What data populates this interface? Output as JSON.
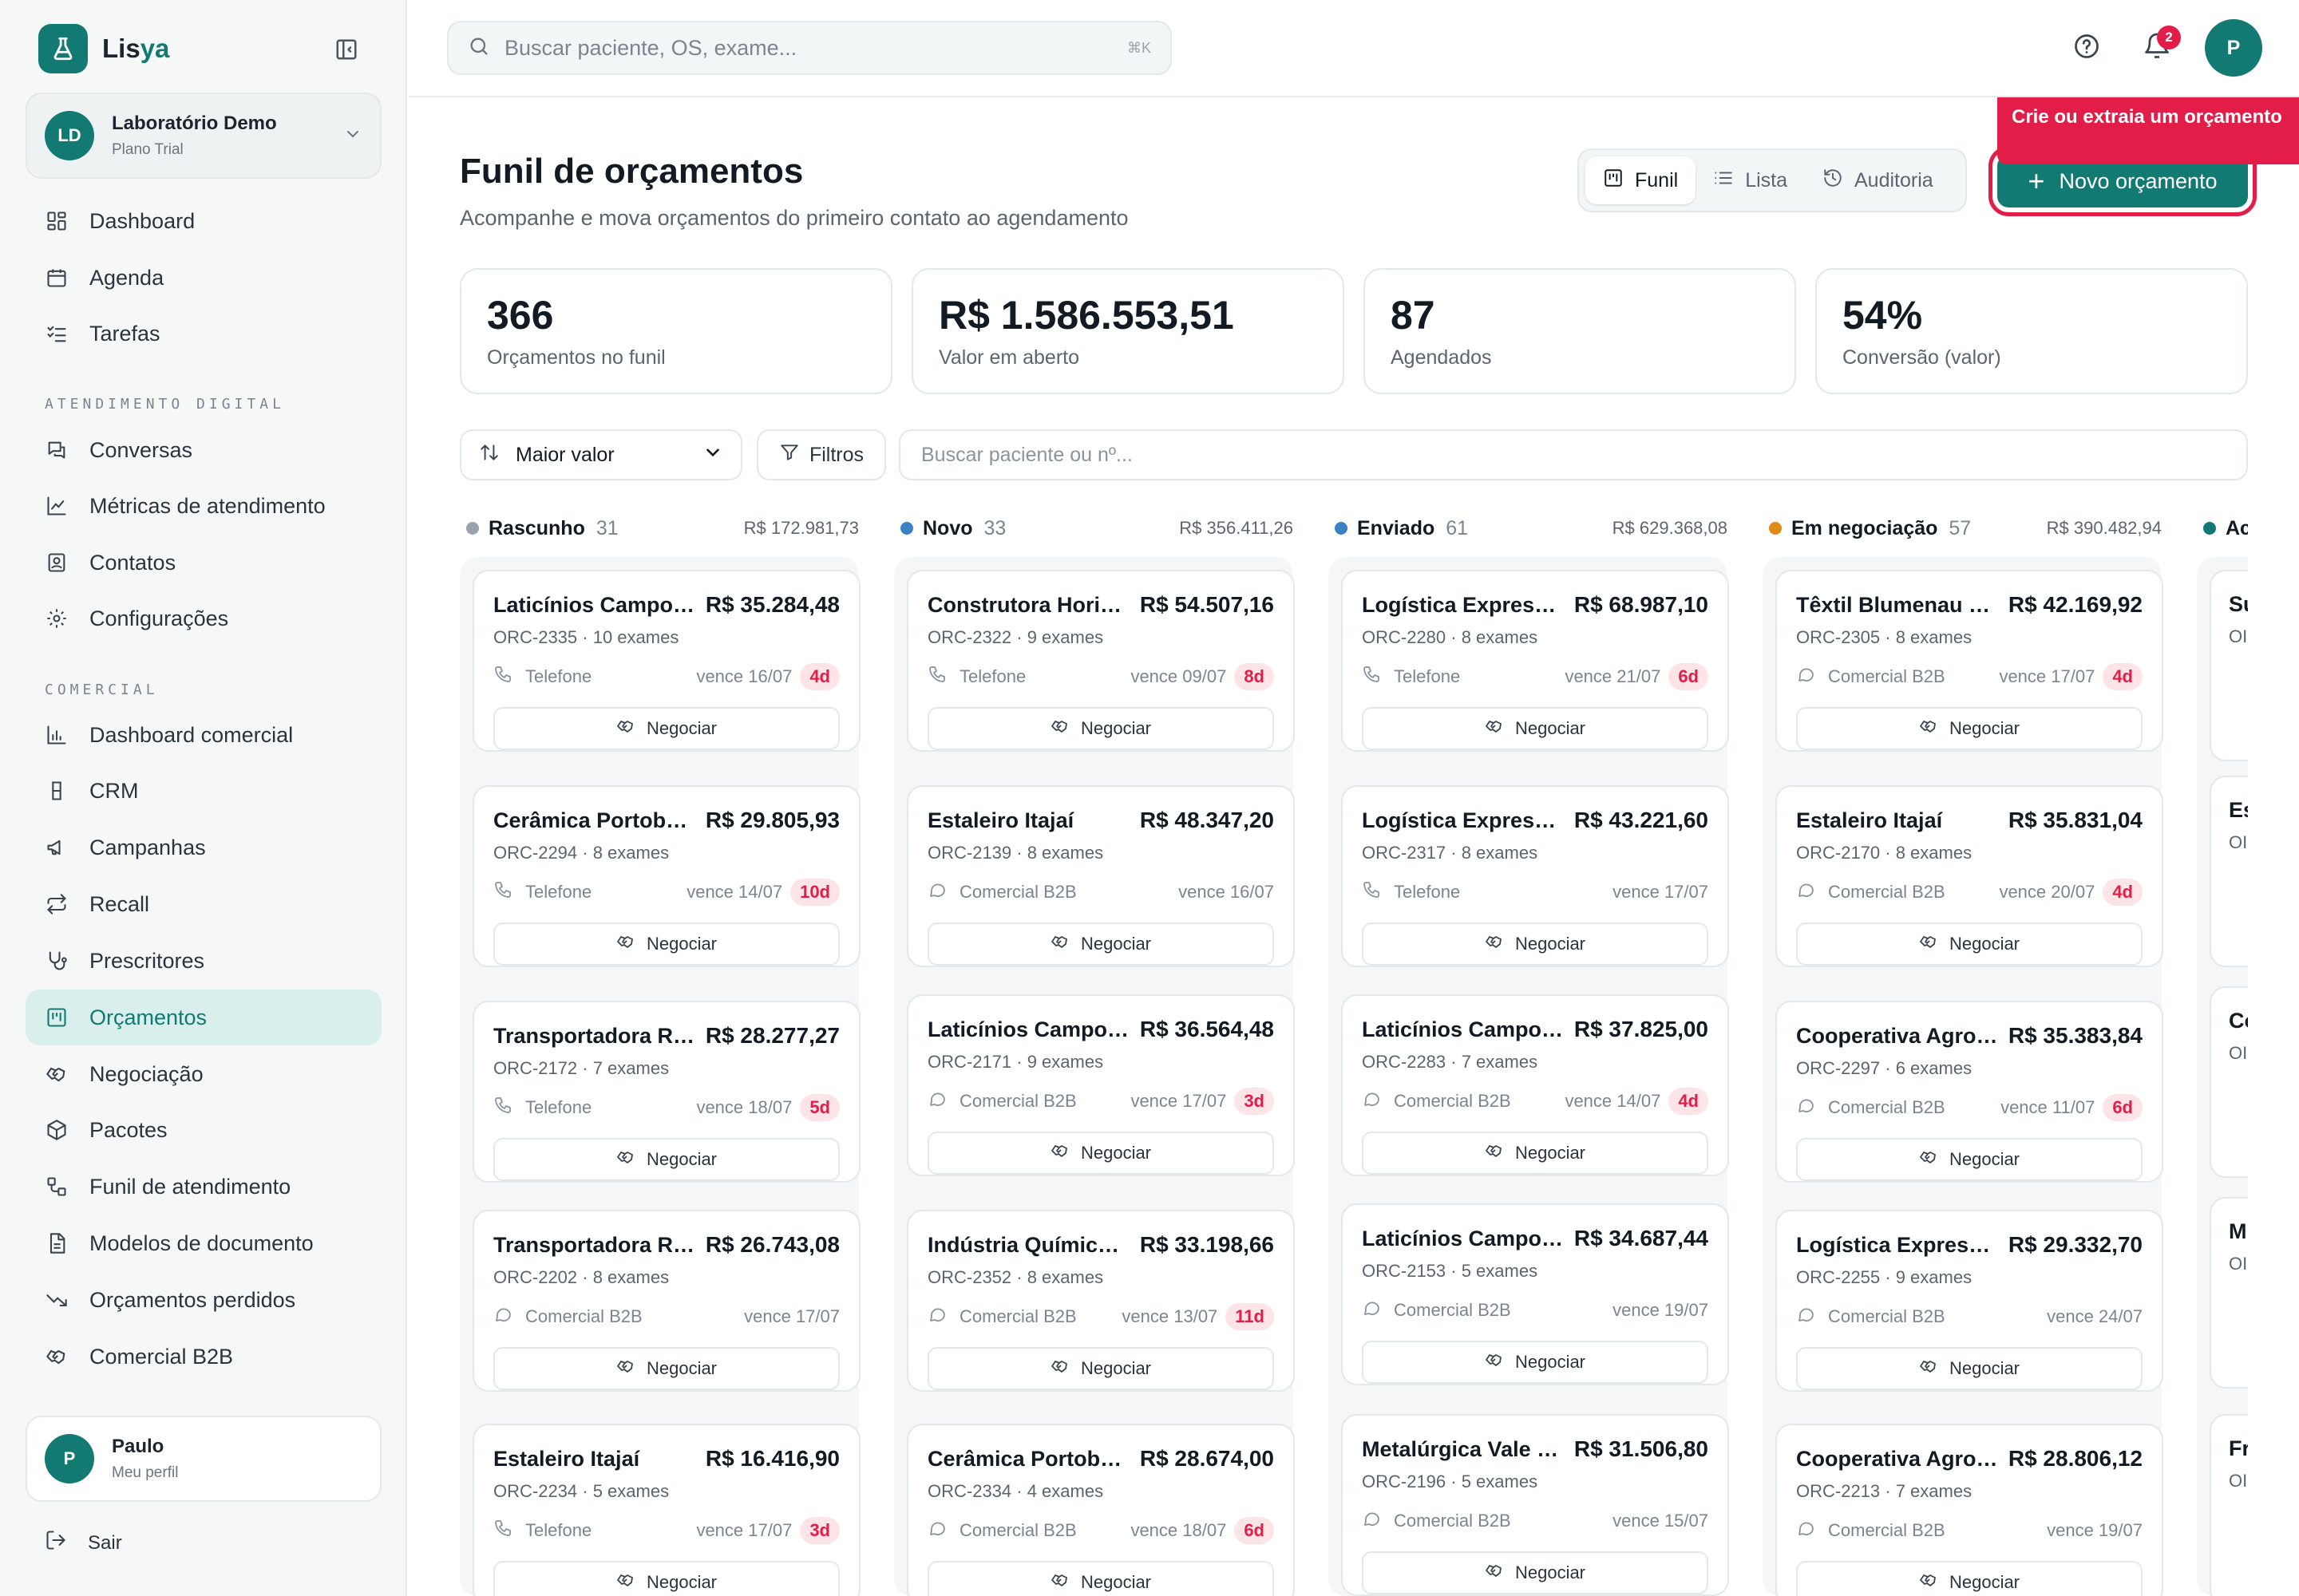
{
  "app": {
    "brand_prefix": "Lis",
    "brand_suffix": "ya"
  },
  "org": {
    "initials": "LD",
    "name": "Laboratório Demo",
    "plan": "Plano Trial"
  },
  "sidebar": {
    "items": [
      {
        "label": "Dashboard",
        "icon": "layout-grid-icon"
      },
      {
        "label": "Agenda",
        "icon": "calendar-icon"
      },
      {
        "label": "Tarefas",
        "icon": "checklist-icon"
      }
    ],
    "section_digital": "ATENDIMENTO DIGITAL",
    "digital_items": [
      {
        "label": "Conversas",
        "icon": "chat-icon"
      },
      {
        "label": "Métricas de atendimento",
        "icon": "line-chart-icon"
      },
      {
        "label": "Contatos",
        "icon": "contact-icon"
      },
      {
        "label": "Configurações",
        "icon": "gear-icon"
      }
    ],
    "section_comercial": "COMERCIAL",
    "comercial_items": [
      {
        "label": "Dashboard comercial",
        "icon": "bar-chart-icon"
      },
      {
        "label": "CRM",
        "icon": "flask-icon"
      },
      {
        "label": "Campanhas",
        "icon": "megaphone-icon"
      },
      {
        "label": "Recall",
        "icon": "repeat-icon"
      },
      {
        "label": "Prescritores",
        "icon": "stethoscope-icon"
      },
      {
        "label": "Orçamentos",
        "icon": "kanban-icon",
        "active": true
      },
      {
        "label": "Negociação",
        "icon": "handshake-icon"
      },
      {
        "label": "Pacotes",
        "icon": "package-icon"
      },
      {
        "label": "Funil de atendimento",
        "icon": "workflow-icon"
      },
      {
        "label": "Modelos de documento",
        "icon": "document-icon"
      },
      {
        "label": "Orçamentos perdidos",
        "icon": "trending-down-icon"
      },
      {
        "label": "Comercial B2B",
        "icon": "handshake-icon"
      }
    ]
  },
  "profile": {
    "initial": "P",
    "name": "Paulo",
    "sub": "Meu perfil",
    "logout": "Sair"
  },
  "topbar": {
    "search_placeholder": "Buscar paciente, OS, exame...",
    "search_shortcut": "⌘K",
    "notifications": "2",
    "avatar_initial": "P"
  },
  "page": {
    "title": "Funil de orçamentos",
    "subtitle": "Acompanhe e mova orçamentos do primeiro contato ao agendamento"
  },
  "views": {
    "funil": "Funil",
    "lista": "Lista",
    "auditoria": "Auditoria"
  },
  "new_button": "Novo orçamento",
  "tooltip": "Crie ou extraia um orçamento",
  "kpis": [
    {
      "value": "366",
      "label": "Orçamentos no funil"
    },
    {
      "value": "R$ 1.586.553,51",
      "label": "Valor em aberto"
    },
    {
      "value": "87",
      "label": "Agendados"
    },
    {
      "value": "54%",
      "label": "Conversão (valor)"
    }
  ],
  "toolbar": {
    "sort": "Maior valor",
    "filters": "Filtros",
    "search_placeholder": "Buscar paciente ou nº..."
  },
  "colors": {
    "rascunho": "#9aa3ad",
    "novo": "#3b82c4",
    "enviado": "#3b82c4",
    "negociacao": "#e08a1a",
    "aceito": "#127a73"
  },
  "action_label": "Negociar",
  "columns": [
    {
      "name": "Rascunho",
      "count": "31",
      "total": "R$ 172.981,73",
      "cards": [
        {
          "name": "Laticínios Campo Verde",
          "amount": "R$ 35.284,48",
          "code": "ORC-2335 · 10 exames",
          "channel": "Telefone",
          "due": "vence 16/07",
          "badge": "4d"
        },
        {
          "name": "Cerâmica Portobelo",
          "amount": "R$ 29.805,93",
          "code": "ORC-2294 · 8 exames",
          "channel": "Telefone",
          "due": "vence 14/07",
          "badge": "10d"
        },
        {
          "name": "Transportadora Rápida",
          "amount": "R$ 28.277,27",
          "code": "ORC-2172 · 7 exames",
          "channel": "Telefone",
          "due": "vence 18/07",
          "badge": "5d"
        },
        {
          "name": "Transportadora Rápida",
          "amount": "R$ 26.743,08",
          "code": "ORC-2202 · 8 exames",
          "channel": "Comercial B2B",
          "due": "vence 17/07",
          "badge": ""
        },
        {
          "name": "Estaleiro Itajaí",
          "amount": "R$ 16.416,90",
          "code": "ORC-2234 · 5 exames",
          "channel": "Telefone",
          "due": "vence 17/07",
          "badge": "3d"
        }
      ]
    },
    {
      "name": "Novo",
      "count": "33",
      "total": "R$ 356.411,26",
      "cards": [
        {
          "name": "Construtora Horizonte",
          "amount": "R$ 54.507,16",
          "code": "ORC-2322 · 9 exames",
          "channel": "Telefone",
          "due": "vence 09/07",
          "badge": "8d"
        },
        {
          "name": "Estaleiro Itajaí",
          "amount": "R$ 48.347,20",
          "code": "ORC-2139 · 8 exames",
          "channel": "Comercial B2B",
          "due": "vence 16/07",
          "badge": ""
        },
        {
          "name": "Laticínios Campo Verde",
          "amount": "R$ 36.564,48",
          "code": "ORC-2171 · 9 exames",
          "channel": "Comercial B2B",
          "due": "vence 17/07",
          "badge": "3d"
        },
        {
          "name": "Indústria Química Sul",
          "amount": "R$ 33.198,66",
          "code": "ORC-2352 · 8 exames",
          "channel": "Comercial B2B",
          "due": "vence 13/07",
          "badge": "11d"
        },
        {
          "name": "Cerâmica Portobelo",
          "amount": "R$ 28.674,00",
          "code": "ORC-2334 · 4 exames",
          "channel": "Comercial B2B",
          "due": "vence 18/07",
          "badge": "6d"
        }
      ]
    },
    {
      "name": "Enviado",
      "count": "61",
      "total": "R$ 629.368,08",
      "cards": [
        {
          "name": "Logística Expressa Sul",
          "amount": "R$ 68.987,10",
          "code": "ORC-2280 · 8 exames",
          "channel": "Telefone",
          "due": "vence 21/07",
          "badge": "6d"
        },
        {
          "name": "Logística Expressa Sul",
          "amount": "R$ 43.221,60",
          "code": "ORC-2317 · 8 exames",
          "channel": "Telefone",
          "due": "vence 17/07",
          "badge": ""
        },
        {
          "name": "Laticínios Campo Verde",
          "amount": "R$ 37.825,00",
          "code": "ORC-2283 · 7 exames",
          "channel": "Comercial B2B",
          "due": "vence 14/07",
          "badge": "4d"
        },
        {
          "name": "Laticínios Campo Verde",
          "amount": "R$ 34.687,44",
          "code": "ORC-2153 · 5 exames",
          "channel": "Comercial B2B",
          "due": "vence 19/07",
          "badge": ""
        },
        {
          "name": "Metalúrgica Vale do Aço",
          "amount": "R$ 31.506,80",
          "code": "ORC-2196 · 5 exames",
          "channel": "Comercial B2B",
          "due": "vence 15/07",
          "badge": ""
        }
      ]
    },
    {
      "name": "Em negociação",
      "count": "57",
      "total": "R$ 390.482,94",
      "cards": [
        {
          "name": "Têxtil Blumenau S.A.",
          "amount": "R$ 42.169,92",
          "code": "ORC-2305 · 8 exames",
          "channel": "Comercial B2B",
          "due": "vence 17/07",
          "badge": "4d"
        },
        {
          "name": "Estaleiro Itajaí",
          "amount": "R$ 35.831,04",
          "code": "ORC-2170 · 8 exames",
          "channel": "Comercial B2B",
          "due": "vence 20/07",
          "badge": "4d"
        },
        {
          "name": "Cooperativa Agroindustrial",
          "amount": "R$ 35.383,84",
          "code": "ORC-2297 · 6 exames",
          "channel": "Comercial B2B",
          "due": "vence 11/07",
          "badge": "6d"
        },
        {
          "name": "Logística Expressa Sul",
          "amount": "R$ 29.332,70",
          "code": "ORC-2255 · 9 exames",
          "channel": "Comercial B2B",
          "due": "vence 24/07",
          "badge": ""
        },
        {
          "name": "Cooperativa Agroindustrial",
          "amount": "R$ 28.806,12",
          "code": "ORC-2213 · 7 exames",
          "channel": "Comercial B2B",
          "due": "vence 19/07",
          "badge": ""
        }
      ]
    }
  ],
  "partial_column": {
    "name": "Ac",
    "cards": [
      {
        "t": "Su",
        "m": "OI"
      },
      {
        "t": "Es",
        "m": "OI"
      },
      {
        "t": "Co",
        "m": "OI"
      },
      {
        "t": "M",
        "m": "OI"
      },
      {
        "t": "Fr",
        "m": "OI"
      }
    ]
  }
}
